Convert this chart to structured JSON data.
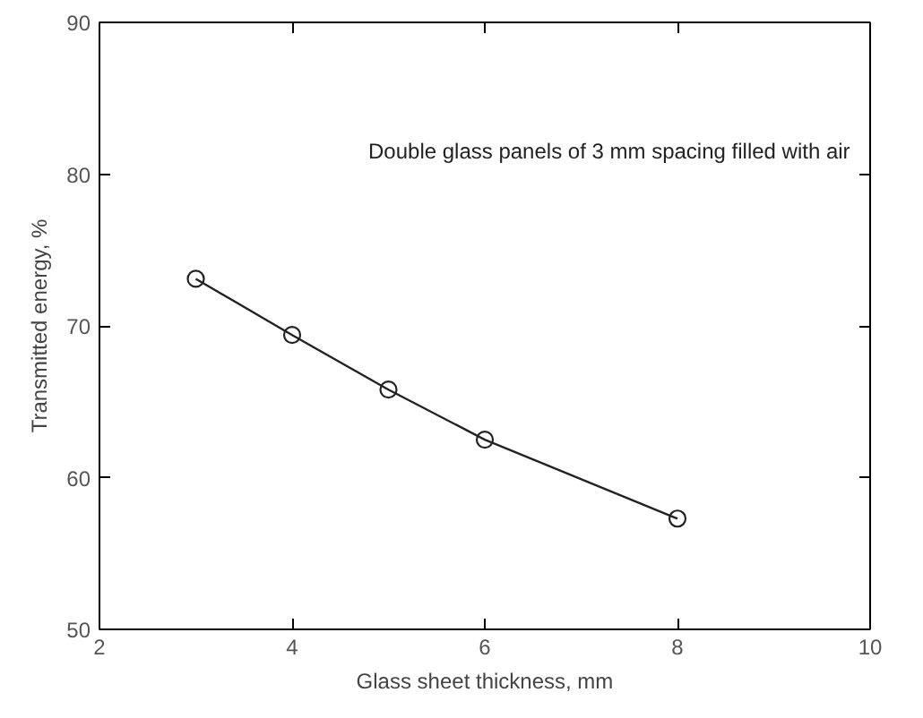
{
  "chart_data": {
    "type": "line",
    "xlabel": "Glass sheet thickness, mm",
    "ylabel": "Transmitted energy, %",
    "annotations": [
      "Double glass panels of 3 mm spacing filled with air"
    ],
    "x": [
      3,
      4,
      5,
      6,
      8
    ],
    "series": [
      {
        "color": "#222222",
        "values": [
          73.1,
          69.4,
          65.8,
          62.5,
          57.3
        ]
      }
    ],
    "marker": "circle",
    "line_style": "solid",
    "xlim": [
      2,
      10
    ],
    "ylim": [
      50,
      90
    ],
    "xticks": [
      2,
      4,
      6,
      8,
      10
    ],
    "yticks": [
      50,
      60,
      70,
      80,
      90
    ]
  }
}
